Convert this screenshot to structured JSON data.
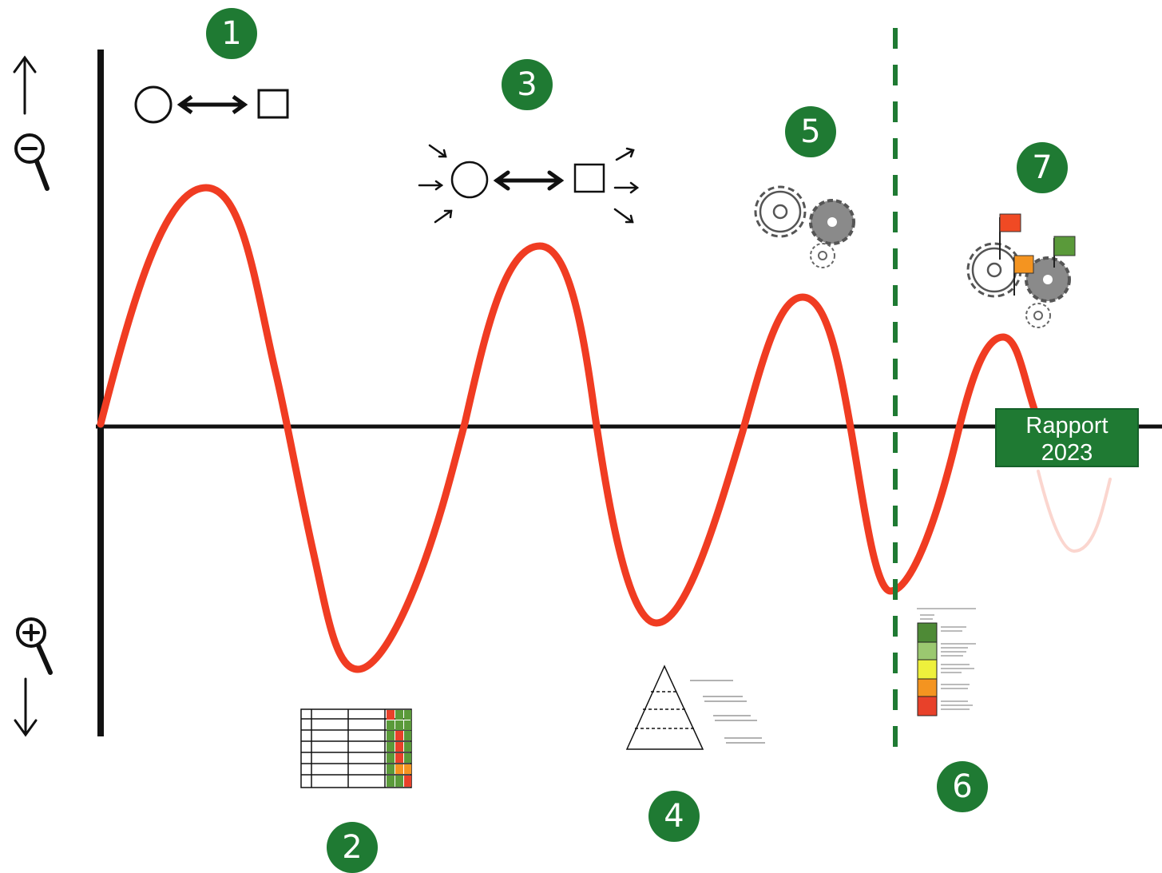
{
  "badges": [
    {
      "id": "1",
      "label": "1"
    },
    {
      "id": "2",
      "label": "2"
    },
    {
      "id": "3",
      "label": "3"
    },
    {
      "id": "4",
      "label": "4"
    },
    {
      "id": "5",
      "label": "5"
    },
    {
      "id": "6",
      "label": "6"
    },
    {
      "id": "7",
      "label": "7"
    }
  ],
  "report": {
    "line1": "Rapport",
    "line2": "2023"
  },
  "icons": {
    "zoom_out": "magnifier-minus-icon",
    "zoom_in": "magnifier-plus-icon",
    "relation": "circle-arrow-square-icon",
    "relation_flow": "circle-arrow-square-with-inputs-outputs-icon",
    "matrix": "matrix-table-icon",
    "pyramid": "goal-pyramid-icon",
    "gears": "gears-icon",
    "gears_flags": "gears-with-flags-icon",
    "indicator_scale": "impact-indicator-scale-icon"
  },
  "colors": {
    "wave": "#f03c22",
    "badge": "#1f7a33",
    "divider": "#1f7a33",
    "axis": "#111111"
  }
}
